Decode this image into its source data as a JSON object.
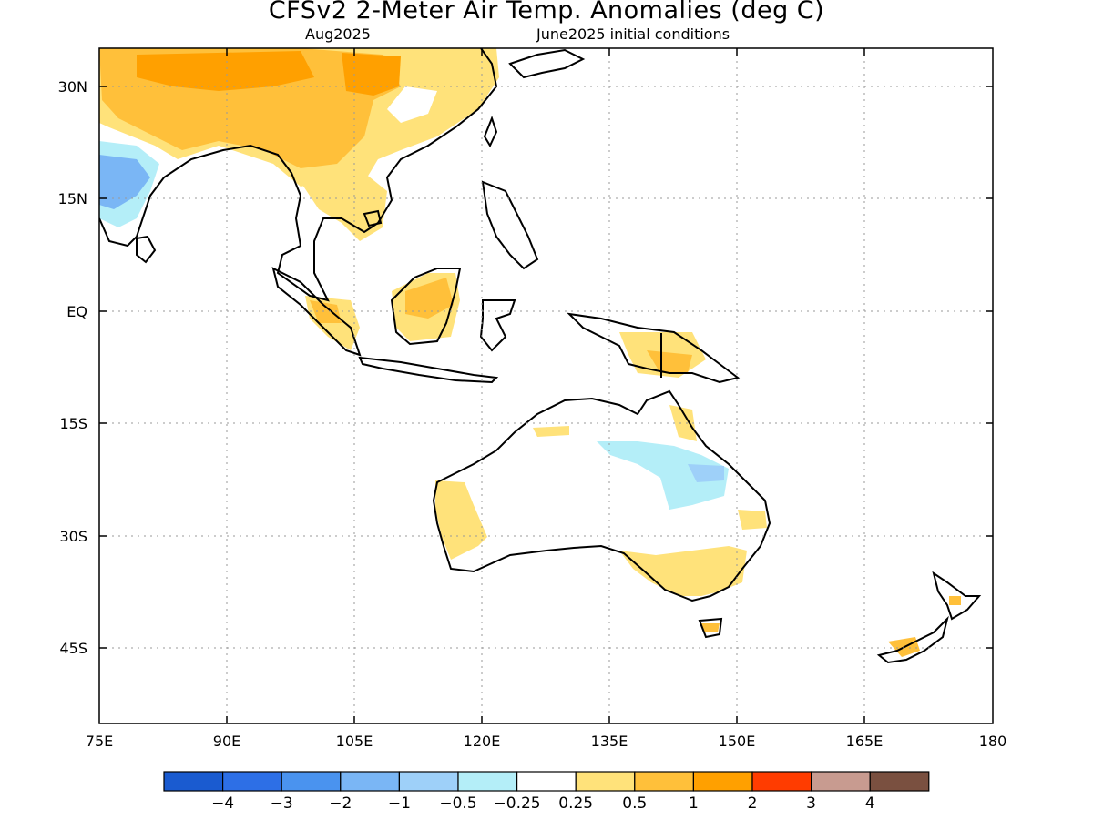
{
  "title": "CFSv2 2-Meter Air Temp. Anomalies (deg C)",
  "subtitle_left": "Aug2025",
  "subtitle_right": "June2025 initial conditions",
  "map": {
    "lon_range": [
      75,
      180
    ],
    "lat_range": [
      -55,
      35
    ],
    "lat_ticks": [
      {
        "value": 30,
        "label": "30N"
      },
      {
        "value": 15,
        "label": "15N"
      },
      {
        "value": 0,
        "label": "EQ"
      },
      {
        "value": -15,
        "label": "15S"
      },
      {
        "value": -30,
        "label": "30S"
      },
      {
        "value": -45,
        "label": "45S"
      }
    ],
    "lon_ticks": [
      {
        "value": 75,
        "label": "75E"
      },
      {
        "value": 90,
        "label": "90E"
      },
      {
        "value": 105,
        "label": "105E"
      },
      {
        "value": 120,
        "label": "120E"
      },
      {
        "value": 135,
        "label": "135E"
      },
      {
        "value": 150,
        "label": "150E"
      },
      {
        "value": 165,
        "label": "165E"
      },
      {
        "value": 180,
        "label": "180"
      }
    ],
    "grid": "dotted"
  },
  "colorbar": {
    "colors": [
      "#1a5bd0",
      "#2d6fe6",
      "#4a93ef",
      "#7ab6f5",
      "#9ed0f9",
      "#b4eef8",
      "#ffffff",
      "#ffe27a",
      "#ffc03a",
      "#ffa000",
      "#ff3c00",
      "#c89b90",
      "#7a5040"
    ],
    "labels": [
      "−4",
      "−3",
      "−2",
      "−1",
      "−0.5",
      "−0.25",
      "0.25",
      "0.5",
      "1",
      "2",
      "3",
      "4"
    ]
  }
}
